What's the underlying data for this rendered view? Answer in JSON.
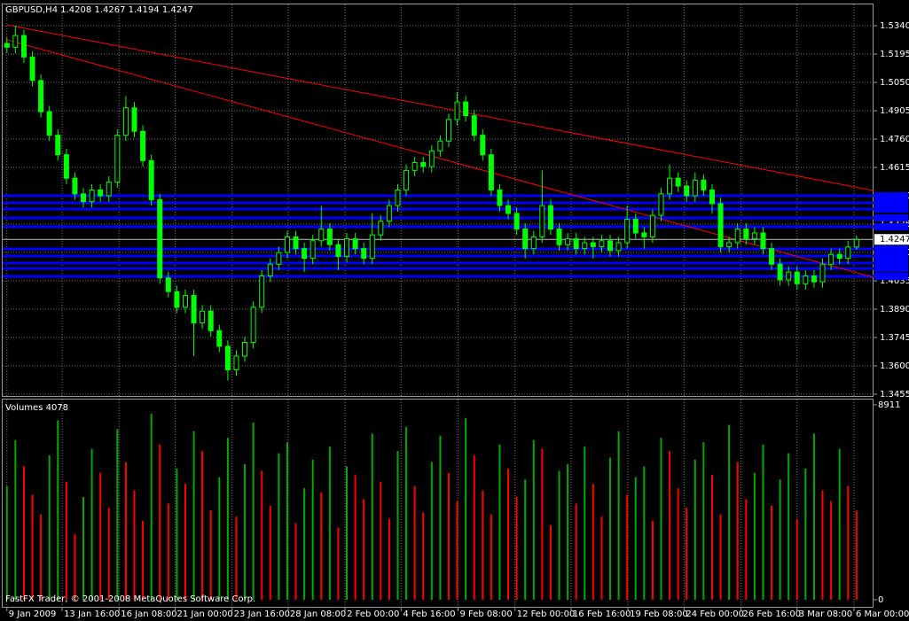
{
  "chart_data": {
    "type": "candlestick",
    "symbol": "GBPUSD,H4",
    "footer": "FastFX Trader, © 2001-2008 MetaQuotes Software Corp.",
    "candle_color": "#00ff00",
    "open": [
      1.525,
      1.523,
      1.529,
      1.518,
      1.506,
      1.49,
      1.478,
      1.468,
      1.456,
      1.448,
      1.444,
      1.45,
      1.447,
      1.454,
      1.478,
      1.492,
      1.48,
      1.465,
      1.445,
      1.405,
      1.398,
      1.39,
      1.396,
      1.382,
      1.388,
      1.378,
      1.37,
      1.358,
      1.365,
      1.372,
      1.39,
      1.406,
      1.412,
      1.418,
      1.426,
      1.42,
      1.415,
      1.424,
      1.43,
      1.422,
      1.416,
      1.425,
      1.42,
      1.415,
      1.427,
      1.434,
      1.442,
      1.45,
      1.46,
      1.464,
      1.462,
      1.47,
      1.475,
      1.486,
      1.495,
      1.488,
      1.478,
      1.468,
      1.45,
      1.442,
      1.438,
      1.43,
      1.42,
      1.426,
      1.442,
      1.43,
      1.422,
      1.425,
      1.42,
      1.423,
      1.421,
      1.424,
      1.419,
      1.423,
      1.435,
      1.428,
      1.426,
      1.437,
      1.448,
      1.456,
      1.452,
      1.447,
      1.455,
      1.45,
      1.443,
      1.421,
      1.423,
      1.43,
      1.425,
      1.428,
      1.42,
      1.412,
      1.404,
      1.408,
      1.402,
      1.406,
      1.403,
      1.412,
      1.417,
      1.415,
      1.4208
    ],
    "high": [
      1.528,
      1.534,
      1.532,
      1.521,
      1.509,
      1.493,
      1.481,
      1.471,
      1.459,
      1.451,
      1.453,
      1.453,
      1.457,
      1.481,
      1.498,
      1.495,
      1.483,
      1.468,
      1.448,
      1.408,
      1.401,
      1.399,
      1.399,
      1.391,
      1.391,
      1.381,
      1.373,
      1.368,
      1.375,
      1.393,
      1.409,
      1.415,
      1.421,
      1.429,
      1.429,
      1.423,
      1.427,
      1.442,
      1.433,
      1.425,
      1.428,
      1.428,
      1.423,
      1.438,
      1.437,
      1.445,
      1.453,
      1.463,
      1.467,
      1.467,
      1.473,
      1.478,
      1.489,
      1.5,
      1.498,
      1.491,
      1.481,
      1.471,
      1.453,
      1.445,
      1.441,
      1.433,
      1.429,
      1.46,
      1.445,
      1.433,
      1.428,
      1.428,
      1.426,
      1.426,
      1.427,
      1.427,
      1.426,
      1.442,
      1.438,
      1.431,
      1.44,
      1.451,
      1.463,
      1.459,
      1.455,
      1.459,
      1.458,
      1.453,
      1.446,
      1.426,
      1.433,
      1.433,
      1.431,
      1.431,
      1.423,
      1.415,
      1.411,
      1.411,
      1.409,
      1.409,
      1.415,
      1.42,
      1.42,
      1.424,
      1.4267
    ],
    "low": [
      1.52,
      1.52,
      1.515,
      1.503,
      1.487,
      1.475,
      1.465,
      1.453,
      1.445,
      1.441,
      1.441,
      1.444,
      1.444,
      1.451,
      1.475,
      1.477,
      1.462,
      1.442,
      1.402,
      1.395,
      1.387,
      1.387,
      1.365,
      1.379,
      1.375,
      1.367,
      1.3525,
      1.355,
      1.362,
      1.369,
      1.387,
      1.403,
      1.409,
      1.415,
      1.417,
      1.408,
      1.412,
      1.421,
      1.419,
      1.409,
      1.413,
      1.417,
      1.412,
      1.412,
      1.424,
      1.431,
      1.439,
      1.447,
      1.457,
      1.459,
      1.459,
      1.467,
      1.472,
      1.483,
      1.485,
      1.475,
      1.465,
      1.447,
      1.439,
      1.435,
      1.427,
      1.415,
      1.417,
      1.423,
      1.427,
      1.419,
      1.419,
      1.417,
      1.417,
      1.415,
      1.418,
      1.416,
      1.416,
      1.42,
      1.425,
      1.42,
      1.423,
      1.434,
      1.445,
      1.449,
      1.444,
      1.444,
      1.447,
      1.438,
      1.418,
      1.418,
      1.42,
      1.422,
      1.422,
      1.417,
      1.409,
      1.401,
      1.401,
      1.399,
      1.399,
      1.4,
      1.4,
      1.409,
      1.412,
      1.412,
      1.4194
    ],
    "close": [
      1.523,
      1.529,
      1.518,
      1.506,
      1.49,
      1.478,
      1.468,
      1.456,
      1.448,
      1.444,
      1.45,
      1.447,
      1.454,
      1.478,
      1.492,
      1.48,
      1.465,
      1.445,
      1.405,
      1.398,
      1.39,
      1.396,
      1.382,
      1.388,
      1.378,
      1.37,
      1.358,
      1.365,
      1.372,
      1.39,
      1.406,
      1.412,
      1.418,
      1.426,
      1.42,
      1.415,
      1.424,
      1.43,
      1.422,
      1.416,
      1.425,
      1.42,
      1.415,
      1.427,
      1.434,
      1.442,
      1.45,
      1.46,
      1.464,
      1.462,
      1.47,
      1.475,
      1.486,
      1.495,
      1.488,
      1.478,
      1.468,
      1.45,
      1.442,
      1.438,
      1.43,
      1.42,
      1.426,
      1.442,
      1.43,
      1.422,
      1.425,
      1.42,
      1.423,
      1.421,
      1.424,
      1.419,
      1.423,
      1.435,
      1.428,
      1.426,
      1.437,
      1.448,
      1.456,
      1.452,
      1.447,
      1.455,
      1.45,
      1.443,
      1.421,
      1.423,
      1.43,
      1.425,
      1.428,
      1.42,
      1.412,
      1.404,
      1.408,
      1.402,
      1.406,
      1.403,
      1.412,
      1.417,
      1.415,
      1.4208,
      1.4247
    ],
    "xlim": [
      -0.5,
      102
    ],
    "xticks": [
      {
        "value": 0,
        "label": "9 Jan 2009"
      },
      {
        "value": 6.5,
        "label": "13 Jan 16:00"
      },
      {
        "value": 13.2,
        "label": "16 Jan 08:00"
      },
      {
        "value": 19.8,
        "label": "21 Jan 00:00"
      },
      {
        "value": 26.5,
        "label": "23 Jan 16:00"
      },
      {
        "value": 33.1,
        "label": "28 Jan 08:00"
      },
      {
        "value": 39.8,
        "label": "2 Feb 00:00"
      },
      {
        "value": 46.4,
        "label": "4 Feb 16:00"
      },
      {
        "value": 53.1,
        "label": "9 Feb 08:00"
      },
      {
        "value": 59.8,
        "label": "12 Feb 00:00"
      },
      {
        "value": 66.4,
        "label": "16 Feb 16:00"
      },
      {
        "value": 73.1,
        "label": "19 Feb 08:00"
      },
      {
        "value": 79.7,
        "label": "24 Feb 00:00"
      },
      {
        "value": 86.4,
        "label": "26 Feb 16:00"
      },
      {
        "value": 93.0,
        "label": "3 Mar 08:00"
      },
      {
        "value": 99.7,
        "label": "6 Mar 00:00"
      }
    ],
    "ylim": [
      1.3446,
      1.5449
    ],
    "yticks": [
      {
        "value": 1.534,
        "label": "1.5340"
      },
      {
        "value": 1.5195,
        "label": "1.5195"
      },
      {
        "value": 1.505,
        "label": "1.5050"
      },
      {
        "value": 1.4905,
        "label": "1.4905"
      },
      {
        "value": 1.476,
        "label": "1.4760"
      },
      {
        "value": 1.4615,
        "label": "1.4615"
      },
      {
        "value": 1.447,
        "label": "1.4470"
      },
      {
        "value": 1.4325,
        "label": "1.4325"
      },
      {
        "value": 1.418,
        "label": "1.4180"
      },
      {
        "value": 1.4035,
        "label": "1.4035"
      },
      {
        "value": 1.389,
        "label": "1.3890"
      },
      {
        "value": 1.3745,
        "label": "1.3745"
      },
      {
        "value": 1.36,
        "label": "1.3600"
      },
      {
        "value": 1.3455,
        "label": "1.3455"
      }
    ],
    "grid": true,
    "trend_color": "#ff0000",
    "trendlines": [
      {
        "x": [
          0,
          102
        ],
        "y": [
          1.5345,
          1.4497
        ]
      },
      {
        "x": [
          0,
          102
        ],
        "y": [
          1.5268,
          1.4053
        ]
      }
    ],
    "level_color": "#0000ff",
    "levels": [
      1.447,
      1.4434,
      1.4402,
      1.4357,
      1.4312,
      1.4198,
      1.4162,
      1.4126,
      1.4098,
      1.4058
    ],
    "volume": {
      "label": "Volumes",
      "up_color": "#00aa00",
      "down_color": "#ff0000",
      "ylim": [
        0,
        8911
      ],
      "yticks": [
        8911,
        0
      ],
      "values": [
        5200,
        7300,
        6100,
        4800,
        3900,
        6600,
        8200,
        5400,
        3000,
        4700,
        6900,
        5800,
        4200,
        7800,
        6300,
        5000,
        3600,
        8500,
        7100,
        4400,
        6000,
        5300,
        7700,
        6800,
        4100,
        5600,
        7400,
        3800,
        6200,
        8100,
        5900,
        4300,
        6700,
        7200,
        3500,
        5100,
        6400,
        4900,
        7000,
        3300,
        6100,
        5700,
        4600,
        7600,
        5400,
        3700,
        6800,
        7900,
        5200,
        4000,
        6300,
        7500,
        5800,
        4500,
        8300,
        6600,
        5000,
        3900,
        7100,
        6000,
        4700,
        5500,
        7300,
        6900,
        3400,
        5900,
        6200,
        4400,
        7000,
        5300,
        3800,
        6500,
        7700,
        4800,
        5600,
        6100,
        3600,
        7400,
        6800,
        5100,
        4200,
        6400,
        7200,
        5700,
        3900,
        8000,
        6300,
        4600,
        5800,
        7100,
        4300,
        5500,
        6700,
        3700,
        6000,
        7600,
        5000,
        4500,
        6900,
        5200,
        4078
      ]
    }
  }
}
